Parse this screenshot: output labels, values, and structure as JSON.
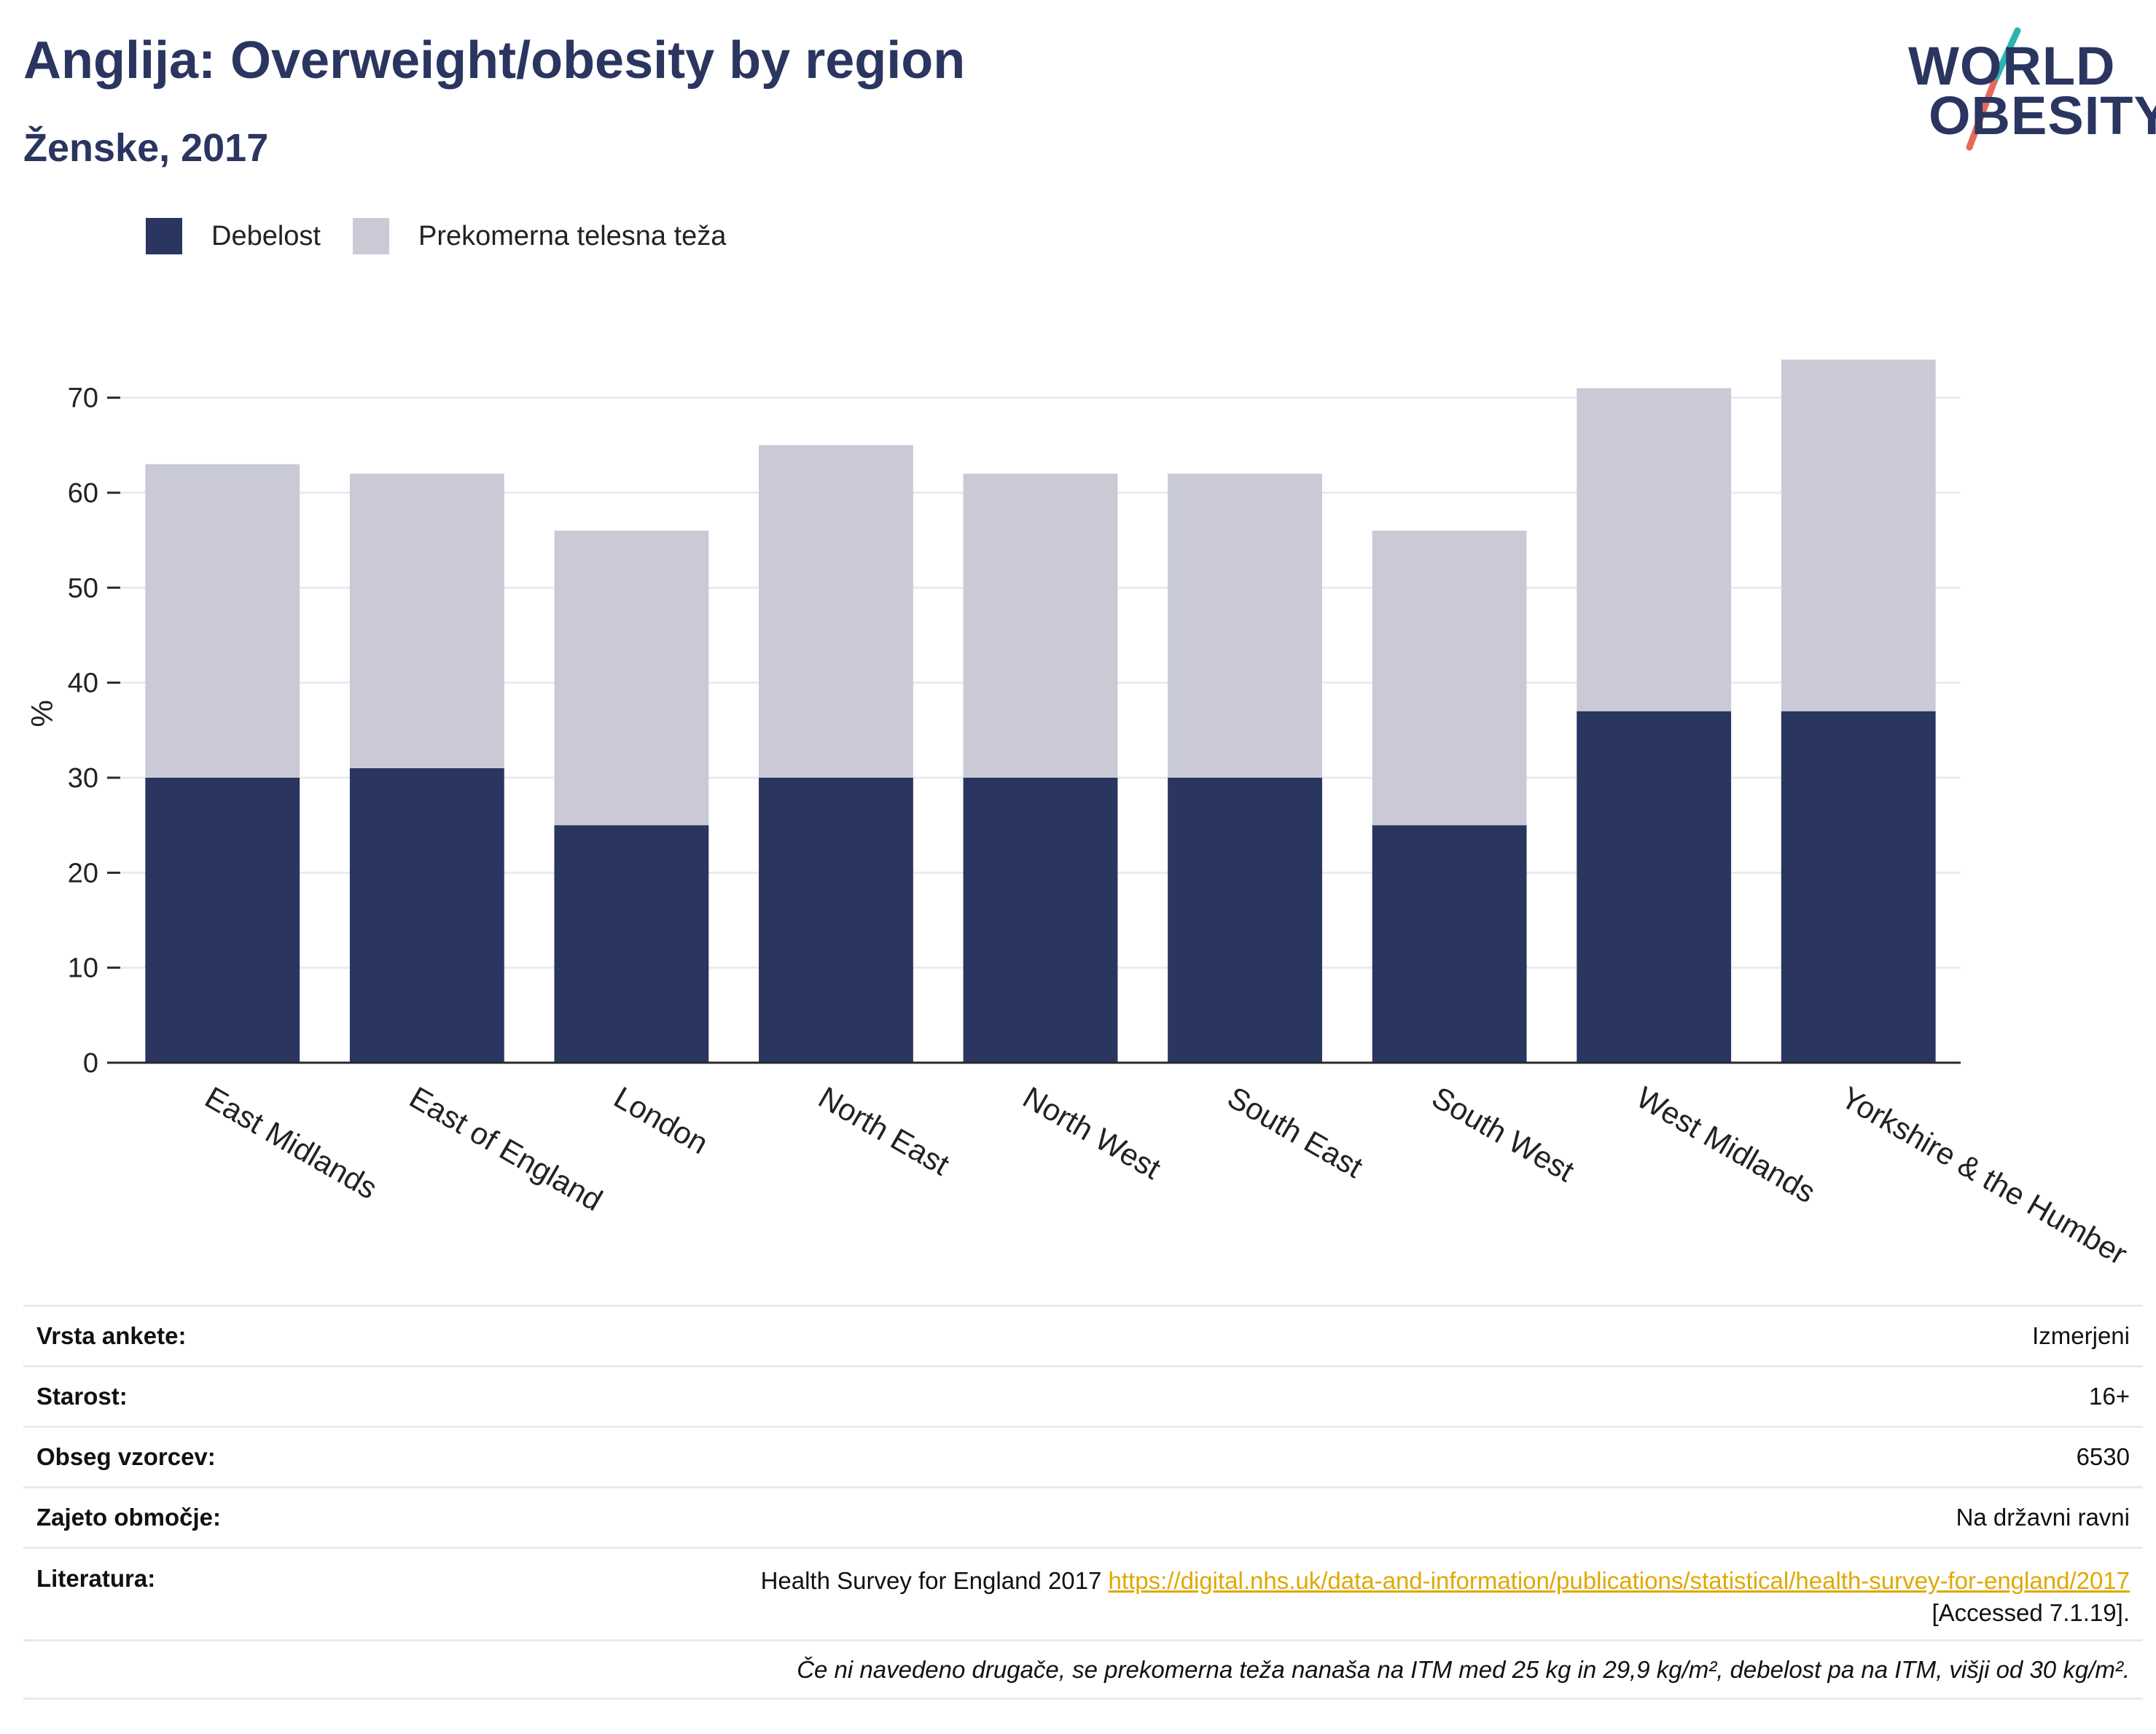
{
  "header": {
    "title": "Anglija: Overweight/obesity by region",
    "subtitle": "Ženske, 2017"
  },
  "logo": {
    "line1": "WORLD",
    "line2": "OBESITY",
    "accent_colors": [
      "#2bb5b0",
      "#e56a5c"
    ]
  },
  "colors": {
    "obesity": "#2a3560",
    "overweight": "#c9cad6",
    "axis": "#2a2a2a",
    "grid": "#e8ebf0"
  },
  "legend": {
    "items": [
      {
        "label": "Debelost",
        "color": "#2a3560"
      },
      {
        "label": "Prekomerna telesna teža",
        "color": "#c9cad6"
      }
    ]
  },
  "chart_data": {
    "type": "bar",
    "stacked": true,
    "ylabel": "%",
    "ylim": [
      0,
      73.5
    ],
    "yticks": [
      0,
      10,
      20,
      30,
      40,
      50,
      60,
      70
    ],
    "grid": true,
    "legend_position": "top-left",
    "categories": [
      "East Midlands",
      "East of England",
      "London",
      "North East",
      "North West",
      "South East",
      "South West",
      "West Midlands",
      "Yorkshire & the Humber"
    ],
    "series": [
      {
        "name": "Debelost",
        "values": [
          30,
          31,
          25,
          30,
          30,
          30,
          25,
          37,
          37
        ]
      },
      {
        "name": "Prekomerna telesna teža",
        "values": [
          33,
          31,
          31,
          35,
          32,
          32,
          31,
          34,
          37
        ]
      }
    ]
  },
  "info_table": {
    "rows": [
      {
        "key": "Vrsta ankete:",
        "value": "Izmerjeni"
      },
      {
        "key": "Starost:",
        "value": "16+"
      },
      {
        "key": "Obseg vzorcev:",
        "value": "6530"
      },
      {
        "key": "Zajeto območje:",
        "value": "Na državni ravni"
      }
    ],
    "literature": {
      "key": "Literatura:",
      "text": "Health Survey for England 2017",
      "link": "https://digital.nhs.uk/data-and-information/publications/statistical/health-survey-for-england/2017",
      "accessed": "[Accessed 7.1.19]."
    },
    "note": "Če ni navedeno drugače, se prekomerna teža nanaša na ITM med 25 kg in 29,9 kg/m², debelost pa na ITM, višji od 30 kg/m²."
  }
}
